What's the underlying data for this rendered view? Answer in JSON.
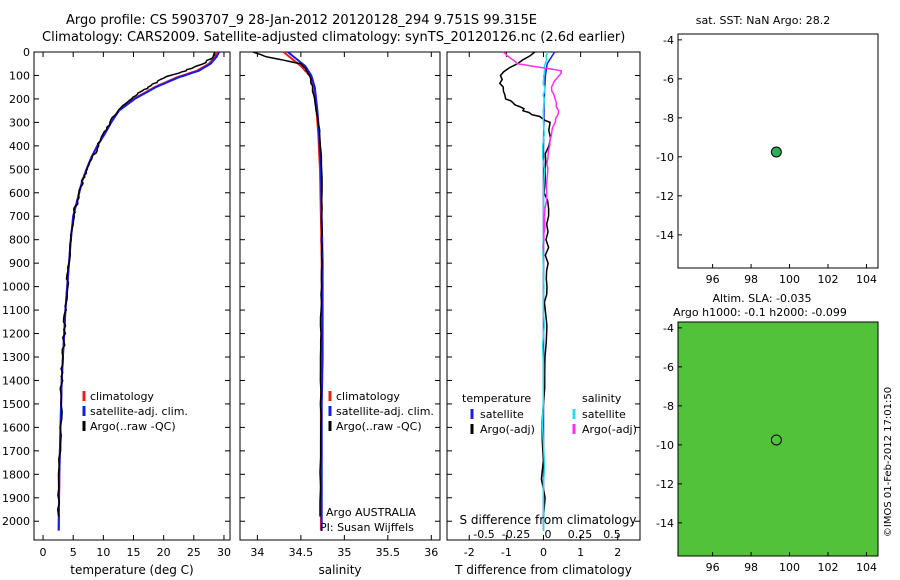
{
  "header": {
    "title_line1": "Argo profile: CS 5903707_9 28-Jan-2012 20120128_294 9.751S 99.315E",
    "title_line2": "Climatology: CARS2009. Satellite-adjusted climatology: synTS_20120126.nc (2.6d earlier)"
  },
  "colors": {
    "climatology": "#e8201c",
    "satellite_clim": "#1a1ae6",
    "argo": "#000000",
    "sat_temp": "#1a1ae6",
    "sat_salinity": "#22e0e8",
    "argo_adj_salinity": "#ff2ef0",
    "land": "#f7c6a4"
  },
  "chart_data": [
    {
      "type": "line",
      "name": "temperature-profile",
      "xlabel": "temperature (deg C)",
      "ylabel": "",
      "xlim": [
        -1.5,
        31
      ],
      "ylim": [
        2080,
        0
      ],
      "xticks": [
        0,
        5,
        10,
        15,
        20,
        25,
        30
      ],
      "yticks": [
        0,
        100,
        200,
        300,
        400,
        500,
        600,
        700,
        800,
        900,
        1000,
        1100,
        1200,
        1300,
        1400,
        1500,
        1600,
        1700,
        1800,
        1900,
        2000
      ],
      "legend": [
        "climatology",
        "satellite-adj. clim.",
        "Argo(..raw -QC)"
      ],
      "legend_placement": "lower-right",
      "series": [
        {
          "name": "climatology",
          "color_key": "climatology",
          "x": [
            28.8,
            28.5,
            27.5,
            25.5,
            22,
            18.5,
            15,
            12.5,
            11.3,
            10.2,
            9,
            8,
            7.2,
            6.5,
            6,
            5.5,
            5,
            4.6,
            4.3,
            4,
            3.7,
            3.5,
            3.3,
            3.1,
            2.9,
            2.7,
            2.6
          ],
          "y": [
            0,
            20,
            50,
            80,
            110,
            150,
            200,
            250,
            300,
            350,
            400,
            450,
            500,
            550,
            600,
            650,
            700,
            800,
            900,
            1000,
            1100,
            1200,
            1300,
            1400,
            1600,
            1800,
            2040
          ]
        },
        {
          "name": "satellite-adj. clim.",
          "color_key": "satellite_clim",
          "x": [
            29.2,
            28.8,
            27.8,
            25.8,
            22.3,
            18.7,
            15.2,
            12.6,
            11.3,
            10.2,
            9,
            8,
            7.2,
            6.5,
            6,
            5.5,
            5,
            4.6,
            4.3,
            4,
            3.7,
            3.5,
            3.3,
            3.1,
            2.9,
            2.7,
            2.6
          ],
          "y": [
            0,
            20,
            50,
            80,
            110,
            150,
            200,
            250,
            300,
            350,
            400,
            450,
            500,
            550,
            600,
            650,
            700,
            800,
            900,
            1000,
            1100,
            1200,
            1300,
            1400,
            1600,
            1800,
            2040
          ]
        },
        {
          "name": "Argo(..raw -QC)",
          "color_key": "argo",
          "x": [
            28.6,
            28.2,
            26.5,
            23.5,
            20,
            17.5,
            15.5,
            13.5,
            11.8,
            10.5,
            9.3,
            8.3,
            7.4,
            6.6,
            6,
            5.5,
            5,
            4.6,
            4.3,
            4,
            3.7,
            3.5,
            3.3,
            3.1,
            2.9,
            2.7,
            2.6
          ],
          "y": [
            0,
            20,
            50,
            80,
            110,
            150,
            180,
            220,
            270,
            330,
            390,
            450,
            500,
            550,
            600,
            650,
            700,
            800,
            900,
            1000,
            1100,
            1200,
            1300,
            1400,
            1600,
            1800,
            1980
          ]
        }
      ]
    },
    {
      "type": "line",
      "name": "salinity-profile",
      "xlabel": "salinity",
      "ylabel": "",
      "xlim": [
        33.8,
        36.1
      ],
      "ylim": [
        2080,
        0
      ],
      "xticks": [
        34,
        34.5,
        35,
        35.5,
        36
      ],
      "legend": [
        "climatology",
        "satellite-adj. clim.",
        "Argo(..raw -QC)"
      ],
      "legend_placement": "lower-right",
      "annotations": [
        "Argo AUSTRALIA",
        "PI: Susan Wijffels"
      ],
      "series": [
        {
          "name": "climatology",
          "color_key": "climatology",
          "x": [
            34.3,
            34.4,
            34.5,
            34.6,
            34.65,
            34.68,
            34.7,
            34.72,
            34.73,
            34.74,
            34.74,
            34.74,
            34.73,
            34.73,
            34.73
          ],
          "y": [
            0,
            30,
            60,
            100,
            150,
            250,
            350,
            500,
            700,
            900,
            1100,
            1300,
            1500,
            1800,
            2040
          ]
        },
        {
          "name": "satellite-adj. clim.",
          "color_key": "satellite_clim",
          "x": [
            34.35,
            34.45,
            34.55,
            34.62,
            34.66,
            34.69,
            34.71,
            34.73,
            34.74,
            34.75,
            34.75,
            34.75,
            34.74,
            34.74,
            34.74
          ],
          "y": [
            0,
            30,
            60,
            100,
            150,
            250,
            350,
            500,
            700,
            900,
            1100,
            1300,
            1500,
            1800,
            2040
          ]
        },
        {
          "name": "Argo(..raw -QC)",
          "color_key": "argo",
          "x": [
            33.95,
            34.1,
            34.5,
            34.55,
            34.6,
            34.63,
            34.68,
            34.72,
            34.74,
            34.74,
            34.74,
            34.73,
            34.73,
            34.73,
            34.72
          ],
          "y": [
            0,
            20,
            50,
            70,
            100,
            150,
            250,
            350,
            500,
            700,
            900,
            1100,
            1300,
            1600,
            1980
          ]
        }
      ]
    },
    {
      "type": "line",
      "name": "difference-profile",
      "xlabel": "T difference from climatology",
      "top_xlabel": "S difference from climatology",
      "ylabel": "",
      "xlim": [
        -2.6,
        2.6
      ],
      "ylim": [
        2080,
        0
      ],
      "xticks": [
        -2,
        -1,
        0,
        1,
        2
      ],
      "top_xticks": [
        "-0.5",
        "-0.25",
        "0",
        "0.25",
        "0.5"
      ],
      "legend_temperature_heading": "temperature",
      "legend_salinity_heading": "salinity",
      "legend": [
        "satellite",
        "Argo(-adj)",
        "satellite",
        "Argo(-adj)"
      ],
      "series": [
        {
          "name": "satellite",
          "color_key": "sat_temp",
          "x": [
            0.3,
            0.1,
            0.05,
            0.02,
            0,
            0,
            0,
            0,
            0
          ],
          "y": [
            0,
            50,
            100,
            200,
            400,
            800,
            1200,
            1600,
            2040
          ]
        },
        {
          "name": "Argo(-adj)",
          "color_key": "argo",
          "x": [
            -0.2,
            -1.2,
            -1.0,
            -0.5,
            0.2,
            0.05,
            0.1,
            0.1,
            0.05,
            0,
            0
          ],
          "y": [
            0,
            100,
            200,
            250,
            300,
            500,
            700,
            900,
            1100,
            1500,
            1980
          ]
        },
        {
          "name": "satellite",
          "color_key": "sat_salinity",
          "x": [
            0.1,
            0.05,
            0.02,
            0,
            0,
            0,
            0,
            0
          ],
          "y": [
            0,
            50,
            100,
            200,
            500,
            1000,
            1500,
            2040
          ]
        },
        {
          "name": "Argo(-adj)",
          "color_key": "argo_adj_salinity",
          "x": [
            -1.1,
            -0.7,
            0.5,
            0.2,
            0.4,
            0.2,
            0.1,
            0.05,
            0
          ],
          "y": [
            0,
            50,
            80,
            150,
            250,
            350,
            500,
            700,
            850
          ]
        }
      ]
    },
    {
      "type": "heatmap",
      "name": "sst-map",
      "title": "sat. SST: NaN Argo: 28.2",
      "xlim": [
        94.2,
        104.6
      ],
      "ylim": [
        -15.7,
        -3.7
      ],
      "xticks": [
        96,
        98,
        100,
        102,
        104
      ],
      "yticks": [
        -4,
        -6,
        -8,
        -10,
        -12,
        -14
      ],
      "argo_position": [
        99.315,
        -9.751
      ]
    },
    {
      "type": "heatmap",
      "name": "sla-map",
      "title": "Altim. SLA: -0.035",
      "subtitle": "Argo h1000: -0.1 h2000: -0.099",
      "xlim": [
        94.2,
        104.6
      ],
      "ylim": [
        -15.7,
        -3.7
      ],
      "xticks": [
        96,
        98,
        100,
        102,
        104
      ],
      "yticks": [
        -4,
        -6,
        -8,
        -10,
        -12,
        -14
      ],
      "argo_position": [
        99.315,
        -9.751
      ]
    }
  ],
  "credit": "©IMOS 01-Feb-2012 17:01:50"
}
